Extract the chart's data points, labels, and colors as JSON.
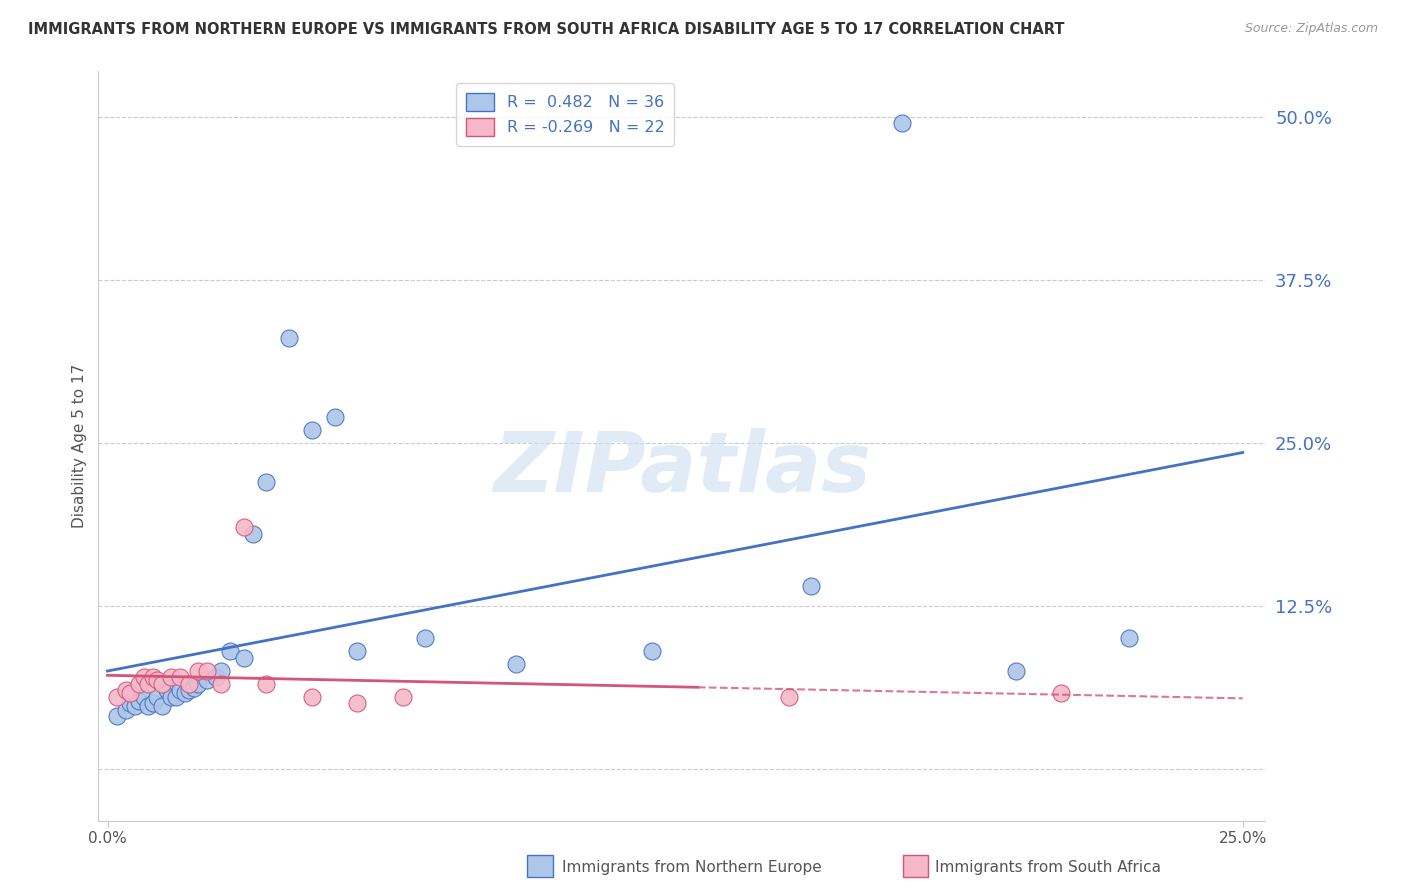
{
  "title": "IMMIGRANTS FROM NORTHERN EUROPE VS IMMIGRANTS FROM SOUTH AFRICA DISABILITY AGE 5 TO 17 CORRELATION CHART",
  "source": "Source: ZipAtlas.com",
  "ylabel": "Disability Age 5 to 17",
  "legend_label1": "Immigrants from Northern Europe",
  "legend_label2": "Immigrants from South Africa",
  "R1": 0.482,
  "N1": 36,
  "R2": -0.269,
  "N2": 22,
  "color1": "#aec6e8",
  "color1_line": "#4472c4",
  "color2": "#f4b8c8",
  "color2_line": "#d4547a",
  "ytick_values": [
    0.0,
    0.125,
    0.25,
    0.375,
    0.5
  ],
  "ytick_labels": [
    "",
    "12.5%",
    "25.0%",
    "37.5%",
    "50.0%"
  ],
  "xlim": [
    -0.002,
    0.255
  ],
  "ylim": [
    -0.04,
    0.535
  ],
  "blue_scatter_x": [
    0.002,
    0.004,
    0.005,
    0.006,
    0.007,
    0.008,
    0.009,
    0.01,
    0.011,
    0.012,
    0.013,
    0.014,
    0.015,
    0.016,
    0.017,
    0.018,
    0.019,
    0.02,
    0.022,
    0.024,
    0.025,
    0.027,
    0.03,
    0.032,
    0.035,
    0.04,
    0.045,
    0.05,
    0.055,
    0.07,
    0.09,
    0.12,
    0.155,
    0.175,
    0.2,
    0.225
  ],
  "blue_scatter_y": [
    0.04,
    0.045,
    0.05,
    0.048,
    0.052,
    0.055,
    0.048,
    0.05,
    0.055,
    0.048,
    0.06,
    0.055,
    0.055,
    0.06,
    0.058,
    0.06,
    0.062,
    0.065,
    0.068,
    0.07,
    0.075,
    0.09,
    0.085,
    0.18,
    0.22,
    0.33,
    0.26,
    0.27,
    0.09,
    0.1,
    0.08,
    0.09,
    0.14,
    0.495,
    0.075,
    0.1
  ],
  "pink_scatter_x": [
    0.002,
    0.004,
    0.005,
    0.007,
    0.008,
    0.009,
    0.01,
    0.011,
    0.012,
    0.014,
    0.016,
    0.018,
    0.02,
    0.022,
    0.025,
    0.03,
    0.035,
    0.045,
    0.055,
    0.065,
    0.15,
    0.21
  ],
  "pink_scatter_y": [
    0.055,
    0.06,
    0.058,
    0.065,
    0.07,
    0.065,
    0.07,
    0.068,
    0.065,
    0.07,
    0.07,
    0.065,
    0.075,
    0.075,
    0.065,
    0.185,
    0.065,
    0.055,
    0.05,
    0.055,
    0.055,
    0.058
  ],
  "watermark": "ZIPatlas",
  "background_color": "#ffffff",
  "grid_color": "#cccccc",
  "grid_linestyle": "--",
  "grid_linewidth": 0.8
}
